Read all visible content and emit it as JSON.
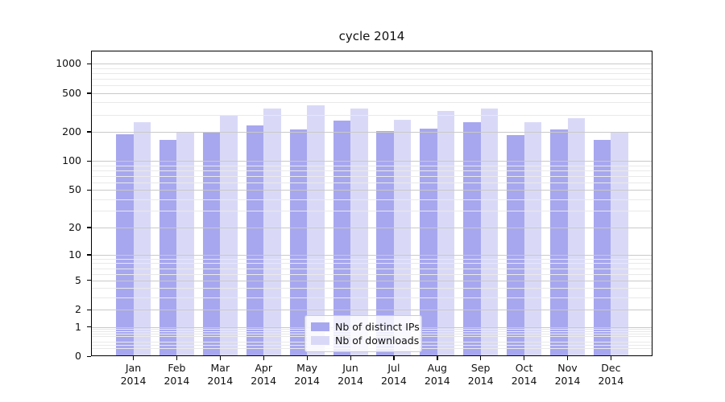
{
  "chart_data": {
    "type": "bar",
    "title": "cycle 2014",
    "categories": [
      "Jan",
      "Feb",
      "Mar",
      "Apr",
      "May",
      "Jun",
      "Jul",
      "Aug",
      "Sep",
      "Oct",
      "Nov",
      "Dec"
    ],
    "year": "2014",
    "series": [
      {
        "name": "Nb of distinct IPs",
        "color": "#a7a7ef",
        "values": [
          190,
          165,
          200,
          233,
          213,
          260,
          205,
          215,
          250,
          185,
          210,
          165
        ]
      },
      {
        "name": "Nb of downloads",
        "color": "#d9d9f7",
        "values": [
          250,
          200,
          295,
          345,
          375,
          350,
          265,
          325,
          350,
          250,
          275,
          200
        ]
      }
    ],
    "xlabel": "",
    "ylabel": "",
    "yscale": "log1p",
    "yticks": [
      0,
      1,
      2,
      5,
      10,
      20,
      50,
      100,
      200,
      500,
      1000
    ],
    "ylim": [
      0,
      1363
    ],
    "grid": "on",
    "grid_major_color": "#c9c9c9",
    "grid_minor_color": "#e9e9e9",
    "legend_position": "lower center",
    "legend_labels": [
      "Nb of distinct IPs",
      "Nb of downloads"
    ]
  }
}
